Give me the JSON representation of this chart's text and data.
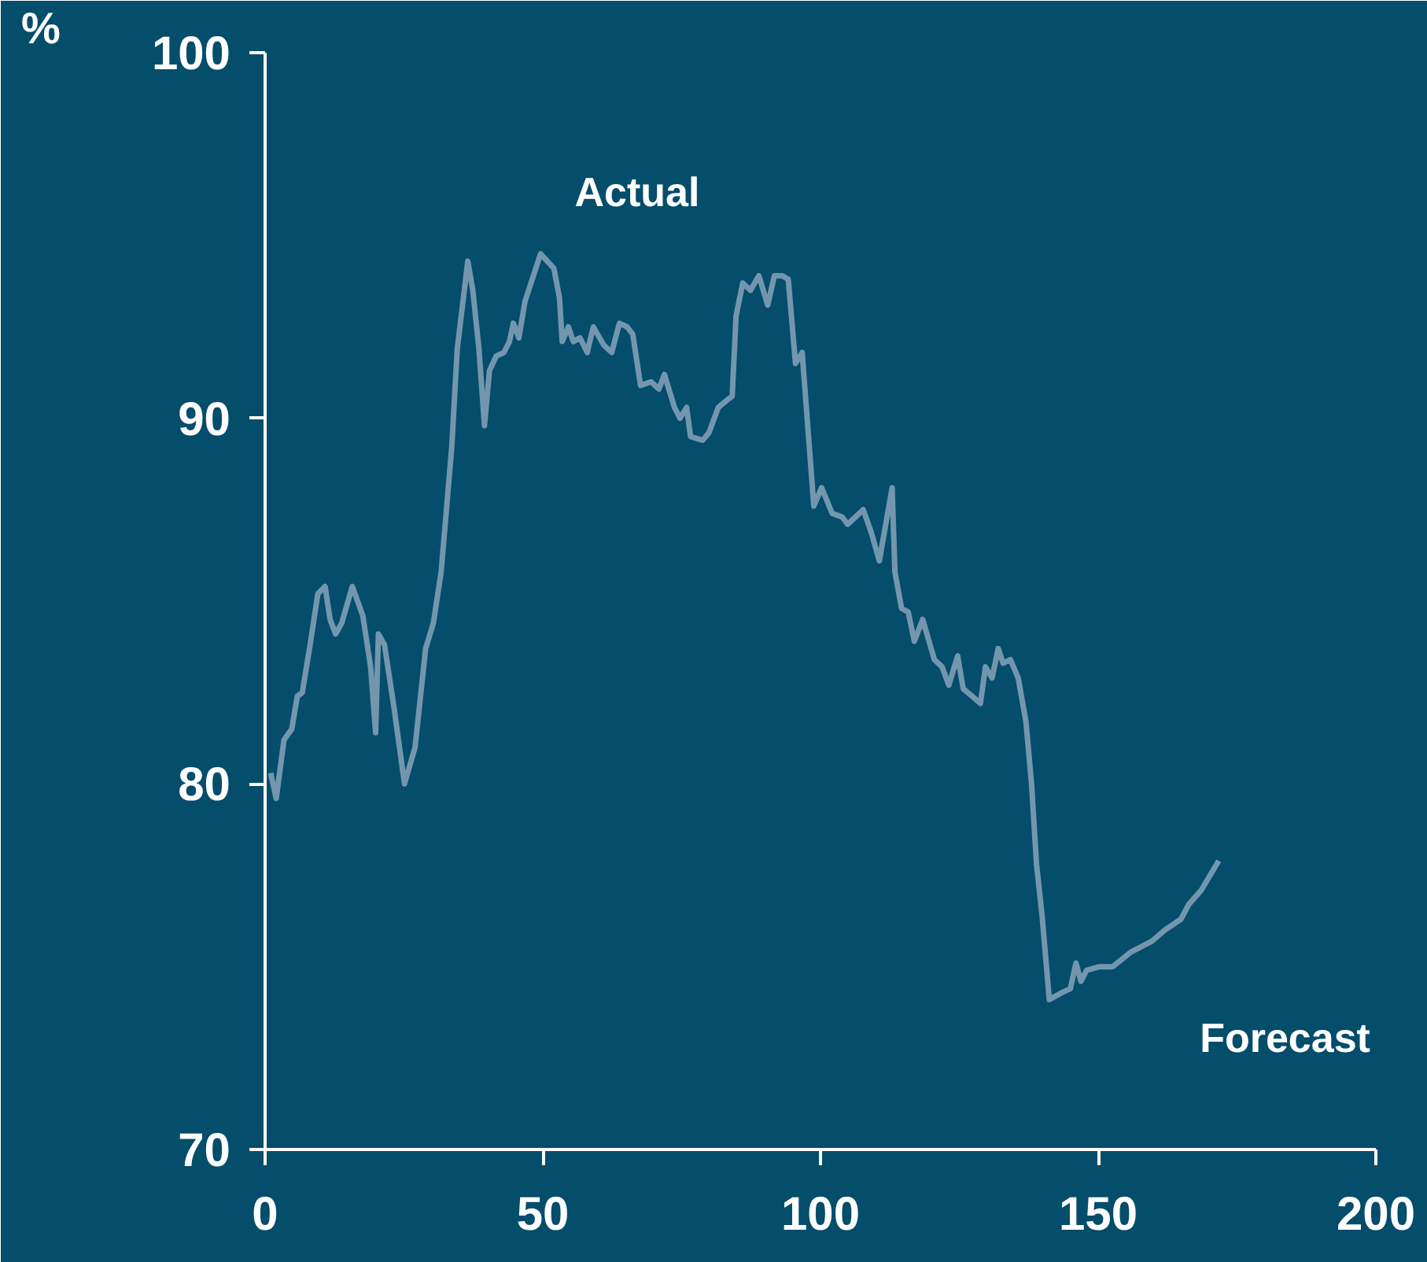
{
  "chart_data": {
    "type": "line",
    "ylabel": "%",
    "annotations": [
      "Actual",
      "Forecast"
    ],
    "xlim": [
      0,
      200
    ],
    "xticks": [
      0,
      50,
      100,
      150,
      200
    ],
    "ylim": [
      70,
      100
    ],
    "yticks": [
      70,
      80,
      90,
      100
    ],
    "grid": false,
    "marker": "none",
    "line_style": "solid",
    "series": [
      {
        "color": "#7396ae",
        "x": [
          1,
          2,
          3.4,
          4.8,
          5.8,
          6.7,
          8.1,
          9.5,
          10.8,
          11.7,
          12.7,
          13.8,
          15.7,
          17.6,
          19,
          19.9,
          20.4,
          21.5,
          23.2,
          25.1,
          27,
          28.9,
          30.3,
          31.7,
          33.6,
          34.6,
          36.5,
          37.4,
          38.5,
          39.5,
          40.4,
          41.6,
          43,
          44,
          44.7,
          45.7,
          46.8,
          49.6,
          52,
          53,
          53.5,
          54.6,
          55.5,
          56.7,
          58,
          59.1,
          61,
          62.4,
          63.8,
          65.2,
          66.2,
          67.6,
          69.5,
          70.9,
          71.9,
          73.7,
          74.7,
          75.9,
          76.6,
          78.8,
          79.9,
          81.6,
          83.2,
          84.1,
          84.8,
          86,
          87.4,
          88.9,
          90.5,
          91.7,
          93.1,
          94.2,
          95.5,
          96.7,
          98.8,
          100.2,
          102.1,
          103.9,
          104.9,
          107.7,
          109.1,
          110.6,
          112.9,
          113.4,
          114.6,
          115.8,
          116.9,
          118.4,
          120.5,
          121.9,
          123.1,
          124.7,
          125.7,
          127.3,
          128.8,
          129.7,
          130.9,
          132,
          132.9,
          134.2,
          135.6,
          137,
          138,
          138.9,
          139.9,
          141.2,
          143.6,
          145,
          146,
          146.9,
          147.9,
          150.2,
          152.6,
          155.9,
          159.7,
          162,
          164.9,
          166.3,
          168.6,
          171.7
        ],
        "values": [
          80.3,
          79.6,
          81.2,
          81.5,
          82.4,
          82.5,
          83.8,
          85.2,
          85.4,
          84.5,
          84.1,
          84.4,
          85.4,
          84.6,
          83.2,
          81.4,
          84.1,
          83.8,
          82.1,
          80.0,
          81.0,
          83.7,
          84.4,
          85.8,
          89.2,
          91.9,
          94.3,
          93.5,
          91.9,
          89.8,
          91.3,
          91.7,
          91.8,
          92.1,
          92.6,
          92.2,
          93.2,
          94.5,
          94.1,
          93.3,
          92.1,
          92.5,
          92.1,
          92.2,
          91.8,
          92.5,
          92.0,
          91.8,
          92.6,
          92.5,
          92.3,
          90.9,
          91.0,
          90.8,
          91.2,
          90.3,
          90.0,
          90.3,
          89.5,
          89.4,
          89.6,
          90.3,
          90.5,
          90.6,
          92.8,
          93.7,
          93.5,
          93.9,
          93.1,
          93.9,
          93.9,
          93.8,
          91.5,
          91.8,
          87.6,
          88.1,
          87.4,
          87.3,
          87.1,
          87.5,
          86.9,
          86.1,
          88.1,
          85.8,
          84.8,
          84.7,
          83.9,
          84.5,
          83.4,
          83.2,
          82.7,
          83.5,
          82.6,
          82.4,
          82.2,
          83.2,
          82.9,
          83.7,
          83.3,
          83.4,
          82.9,
          81.7,
          80.0,
          77.8,
          76.4,
          74.1,
          74.3,
          74.4,
          75.1,
          74.6,
          74.9,
          75.0,
          75.0,
          75.4,
          75.7,
          76.0,
          76.3,
          76.7,
          77.1,
          77.9
        ]
      }
    ]
  }
}
